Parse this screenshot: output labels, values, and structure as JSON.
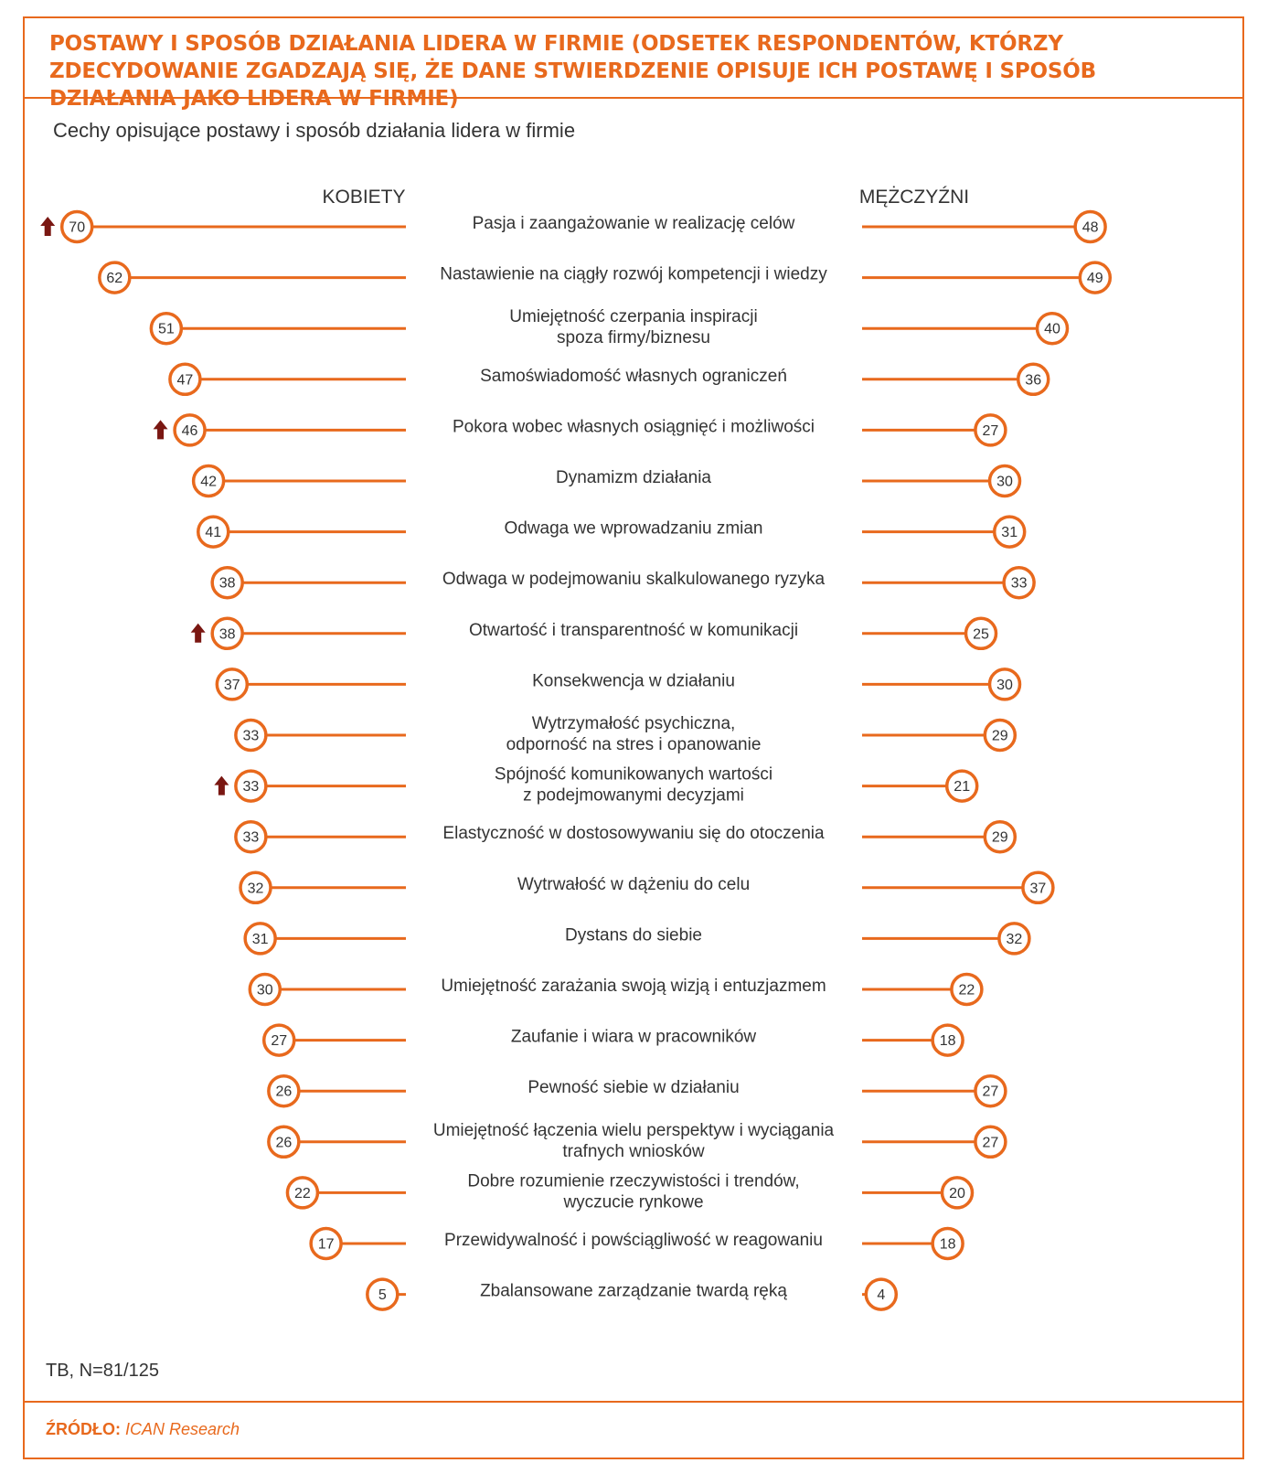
{
  "title": "POSTAWY I SPOSÓB DZIAŁANIA LIDERA W FIRMIE (ODSETEK RESPONDENTÓW, KTÓRZY ZDECYDOWANIE ZGADZAJĄ SIĘ, ŻE DANE STWIERDZENIE OPISUJE ICH POSTAWĘ I SPOSÓB DZIAŁANIA JAKO LIDERA W FIRMIE)",
  "subtitle": "Cechy opisujące postawy i sposób działania lidera w firmie",
  "note": "TB, N=81/125",
  "source_label": "ŹRÓDŁO:",
  "source_value": "ICAN Research",
  "colors": {
    "accent": "#e8691d",
    "arrow": "#7a1712",
    "text": "#333333"
  },
  "chart_data": {
    "type": "diverging-lollipop",
    "left_label": "KOBIETY",
    "right_label": "MĘŻCZYŹNI",
    "categories": [
      "Pasja i zaangażowanie w realizację celów",
      "Nastawienie na ciągły rozwój kompetencji i wiedzy",
      "Umiejętność czerpania inspiracji\nspoza firmy/biznesu",
      "Samoświadomość własnych ograniczeń",
      "Pokora wobec własnych osiągnięć i możliwości",
      "Dynamizm działania",
      "Odwaga we wprowadzaniu zmian",
      "Odwaga w podejmowaniu skalkulowanego ryzyka",
      "Otwartość i transparentność w komunikacji",
      "Konsekwencja w działaniu",
      "Wytrzymałość psychiczna,\nodporność na stres i opanowanie",
      "Spójność komunikowanych wartości\nz podejmowanymi decyzjami",
      "Elastyczność w dostosowywaniu się do otoczenia",
      "Wytrwałość w dążeniu do celu",
      "Dystans do siebie",
      "Umiejętność zarażania swoją wizją i entuzjazmem",
      "Zaufanie i wiara w pracowników",
      "Pewność siebie w działaniu",
      "Umiejętność łączenia wielu perspektyw i wyciągania\ntrafnych wniosków",
      "Dobre rozumienie rzeczywistości i trendów,\nwyczucie rynkowe",
      "Przewidywalność i powściągliwość w reagowaniu",
      "Zbalansowane zarządzanie twardą ręką"
    ],
    "series": [
      {
        "name": "KOBIETY",
        "values": [
          70,
          62,
          51,
          47,
          46,
          42,
          41,
          38,
          38,
          37,
          33,
          33,
          33,
          32,
          31,
          30,
          27,
          26,
          26,
          22,
          17,
          5
        ]
      },
      {
        "name": "MĘŻCZYŹNI",
        "values": [
          48,
          49,
          40,
          36,
          27,
          30,
          31,
          33,
          25,
          30,
          29,
          21,
          29,
          37,
          32,
          22,
          18,
          27,
          27,
          20,
          18,
          4
        ]
      }
    ],
    "significant_higher_women": [
      0,
      4,
      8,
      11
    ]
  }
}
